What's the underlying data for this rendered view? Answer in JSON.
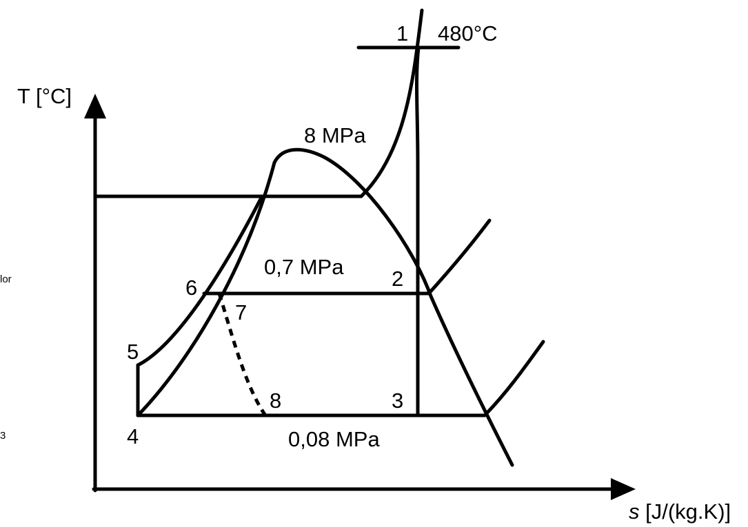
{
  "axes": {
    "y_label": "T [°C]",
    "x_label_symbol": "s",
    "x_label_unit": " [J/(kg.K)]"
  },
  "states": {
    "p1": "1",
    "p2": "2",
    "p3": "3",
    "p4": "4",
    "p5": "5",
    "p6": "6",
    "p7": "7",
    "p8": "8"
  },
  "isobars": {
    "high": "8 MPa",
    "mid": "0,7 MPa",
    "low": "0,08 MPa"
  },
  "temperature_label": "480°C",
  "cropped_margin_text": {
    "upper": "lor",
    "lower": "3"
  },
  "colors": {
    "line": "#000000",
    "background": "#ffffff"
  }
}
